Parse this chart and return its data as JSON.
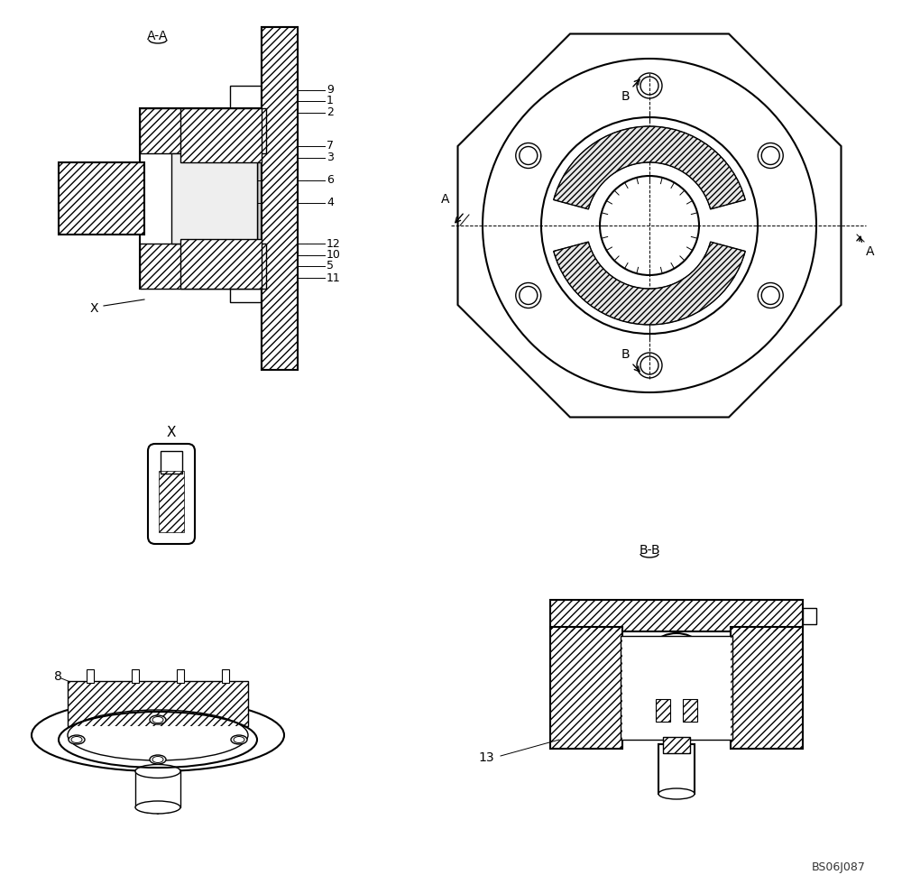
{
  "bg_color": "#ffffff",
  "line_color": "#000000",
  "hatch_color": "#000000",
  "fig_width": 10.0,
  "fig_height": 9.8,
  "watermark": "BS06J087",
  "labels": {
    "AA": "A-A",
    "BB": "B-B",
    "X_label": "X",
    "X2_label": "X",
    "part_numbers": [
      "1",
      "2",
      "3",
      "4",
      "5",
      "6",
      "7",
      "8",
      "9",
      "10",
      "11",
      "12",
      "13"
    ],
    "section_A": "A",
    "section_B": "B"
  }
}
